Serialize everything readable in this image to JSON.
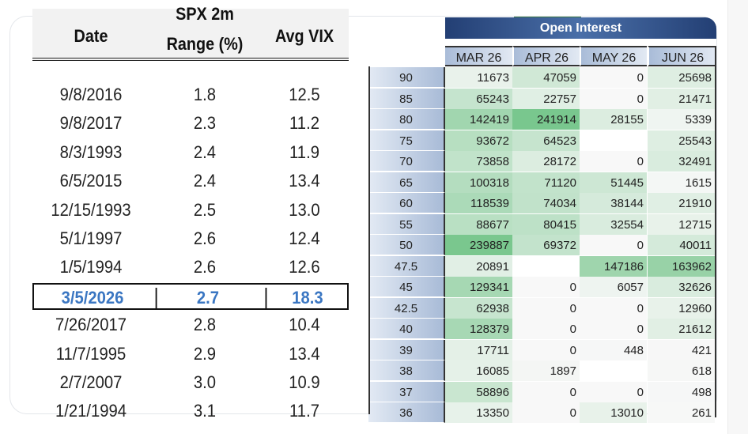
{
  "left_table": {
    "headers": {
      "date": "Date",
      "range_top": "SPX 2m",
      "range": "Range (%)",
      "vix": "Avg VIX"
    },
    "rows": [
      [
        "9/8/2016",
        "1.8",
        "12.5"
      ],
      [
        "9/8/2017",
        "2.3",
        "11.2"
      ],
      [
        "8/3/1993",
        "2.4",
        "11.9"
      ],
      [
        "6/5/2015",
        "2.4",
        "13.4"
      ],
      [
        "12/15/1993",
        "2.5",
        "13.0"
      ],
      [
        "5/1/1997",
        "2.6",
        "12.4"
      ],
      [
        "1/5/1994",
        "2.6",
        "12.6"
      ],
      [
        "3/5/2026",
        "2.7",
        "18.3"
      ],
      [
        "7/26/2017",
        "2.8",
        "10.4"
      ],
      [
        "11/7/1995",
        "2.9",
        "13.4"
      ],
      [
        "2/7/2007",
        "3.0",
        "10.9"
      ],
      [
        "1/21/1994",
        "3.1",
        "11.7"
      ]
    ],
    "highlight_row": 7,
    "highlight_color": "#3a76c2"
  },
  "open_interest": {
    "title": "Open Interest",
    "months": [
      "MAR 26",
      "APR 26",
      "MAY 26",
      "JUN 26"
    ],
    "rows": [
      {
        "strike": "90",
        "values": [
          "11673",
          "47059",
          "0",
          "25698"
        ]
      },
      {
        "strike": "85",
        "values": [
          "65243",
          "22757",
          "0",
          "21471"
        ]
      },
      {
        "strike": "80",
        "values": [
          "142419",
          "241914",
          "28155",
          "5339"
        ]
      },
      {
        "strike": "75",
        "values": [
          "93672",
          "64523",
          "",
          "25543"
        ]
      },
      {
        "strike": "70",
        "values": [
          "73858",
          "28172",
          "0",
          "32491"
        ]
      },
      {
        "strike": "65",
        "values": [
          "100318",
          "71120",
          "51445",
          "1615"
        ]
      },
      {
        "strike": "60",
        "values": [
          "118539",
          "74034",
          "38144",
          "21910"
        ]
      },
      {
        "strike": "55",
        "values": [
          "88677",
          "80415",
          "32554",
          "12715"
        ]
      },
      {
        "strike": "50",
        "values": [
          "239887",
          "69372",
          "0",
          "40011"
        ]
      },
      {
        "strike": "47.5",
        "values": [
          "20891",
          "",
          "147186",
          "163962"
        ]
      },
      {
        "strike": "45",
        "values": [
          "129341",
          "0",
          "6057",
          "32626"
        ]
      },
      {
        "strike": "42.5",
        "values": [
          "62938",
          "0",
          "0",
          "12960"
        ]
      },
      {
        "strike": "40",
        "values": [
          "128379",
          "0",
          "0",
          "21612"
        ]
      },
      {
        "strike": "39",
        "values": [
          "17711",
          "0",
          "448",
          "421"
        ]
      },
      {
        "strike": "38",
        "values": [
          "16085",
          "1897",
          "",
          "618"
        ]
      },
      {
        "strike": "37",
        "values": [
          "58896",
          "0",
          "0",
          "498"
        ]
      },
      {
        "strike": "36",
        "values": [
          "13350",
          "0",
          "13010",
          "261"
        ]
      }
    ],
    "heat_color": "#63be7b"
  }
}
